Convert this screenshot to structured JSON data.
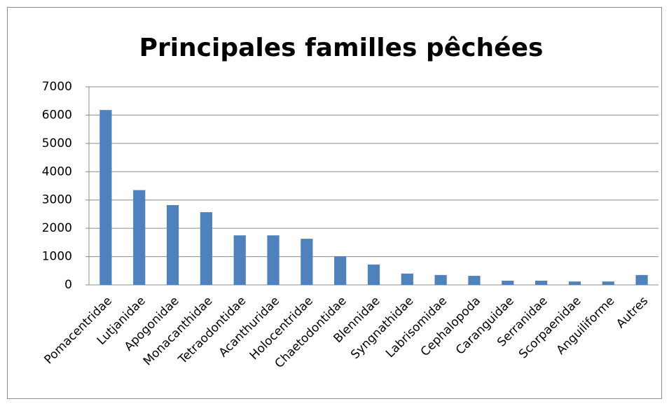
{
  "chart_data": {
    "type": "bar",
    "title": "Principales familles pêchées",
    "categories": [
      "Pomacentridae",
      "Lutjanidae",
      "Apogonidae",
      "Monacanthidae",
      "Tetraodontidae",
      "Acanthuridae",
      "Holocentridae",
      "Chaetodontidae",
      "Blennidae",
      "Syngnathidae",
      "Labrisomidae",
      "Cephalopoda",
      "Caranguidae",
      "Serranidae",
      "Scorpaenidae",
      "Anguiliforme",
      "Autres"
    ],
    "values": [
      6180,
      3350,
      2820,
      2570,
      1750,
      1750,
      1630,
      1010,
      720,
      400,
      350,
      320,
      150,
      150,
      120,
      120,
      350
    ],
    "color": "#4f81bd",
    "ylim": [
      0,
      7000
    ],
    "yticks": [
      0,
      1000,
      2000,
      3000,
      4000,
      5000,
      6000,
      7000
    ],
    "grid": true
  }
}
